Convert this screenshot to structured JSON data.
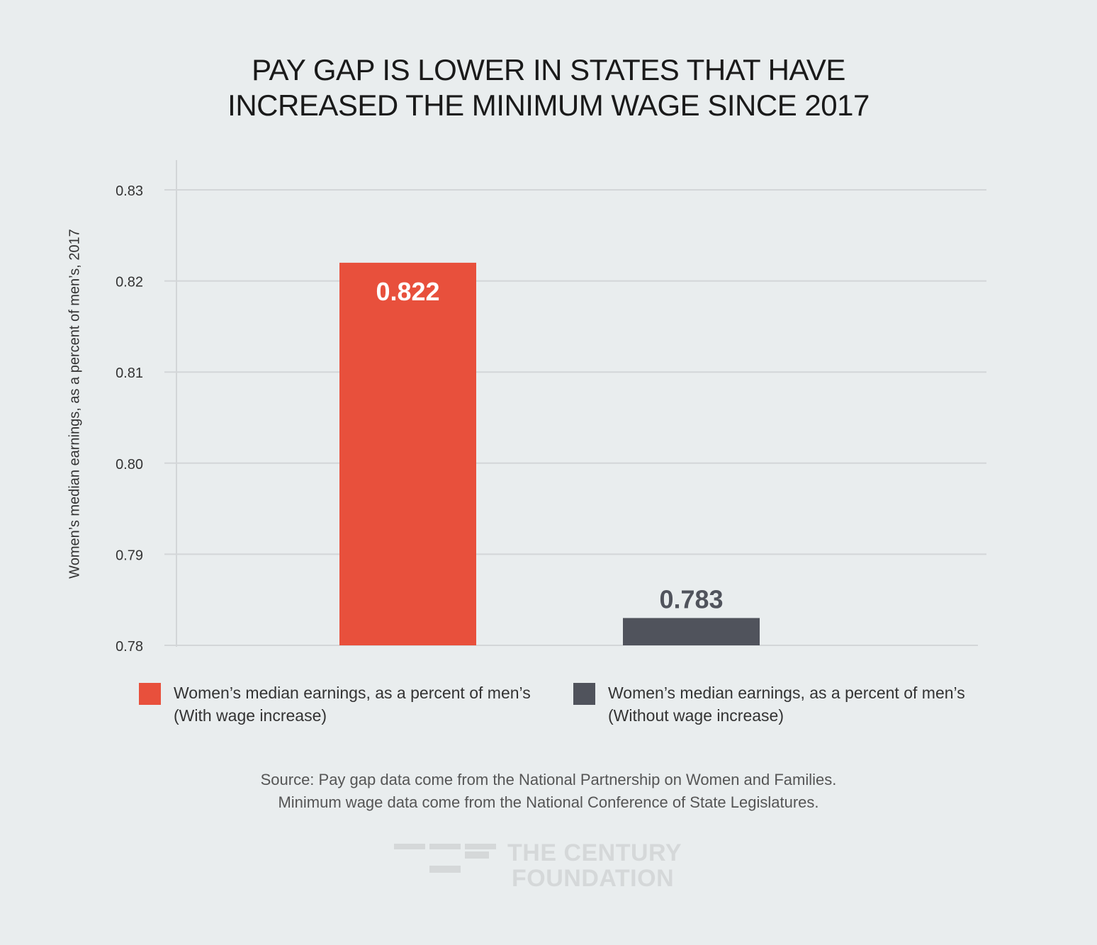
{
  "chart_data": {
    "type": "bar",
    "title_lines": [
      "PAY GAP IS LOWER IN STATES THAT HAVE",
      "INCREASED THE MINIMUM WAGE SINCE 2017"
    ],
    "ylabel": "Women’s median earnings, as a percent of men’s, 2017",
    "xlabel": "",
    "ylim": [
      0.78,
      0.83
    ],
    "yticks": [
      "0.78",
      "0.79",
      "0.80",
      "0.81",
      "0.82",
      "0.83"
    ],
    "grid": true,
    "categories": [
      "With wage increase",
      "Without wage increase"
    ],
    "values": [
      0.822,
      0.783
    ],
    "value_labels": [
      "0.822",
      "0.783"
    ],
    "colors": [
      "#e8503c",
      "#50535c"
    ],
    "legend": [
      {
        "line1": "Women’s median earnings, as a percent of men’s",
        "line2": "(With wage increase)"
      },
      {
        "line1": "Women’s median earnings, as a percent of men’s",
        "line2": "(Without wage increase)"
      }
    ],
    "legend_placement": "bottom"
  },
  "source": {
    "line1": "Source: Pay gap data come from the National Partnership on Women and Families.",
    "line2": "Minimum wage data come from the National Conference of State Legislatures."
  },
  "logo": {
    "line1": "THE CENTURY",
    "line2": "FOUNDATION"
  }
}
